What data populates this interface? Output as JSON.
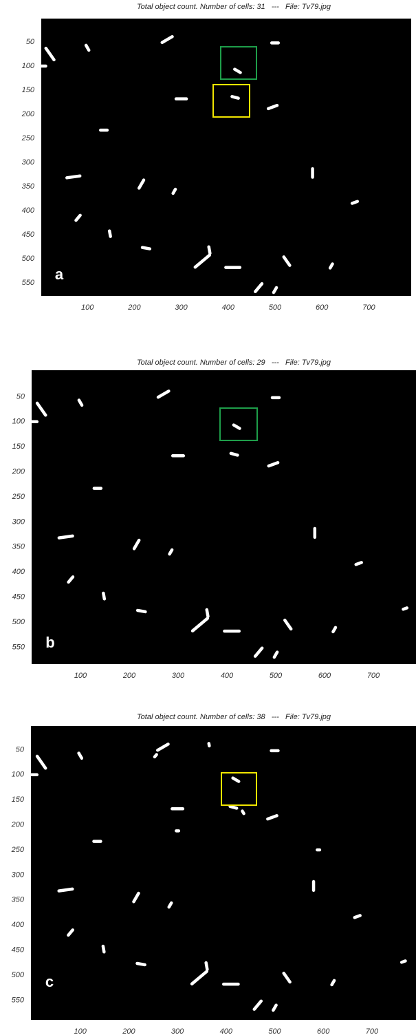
{
  "panels": [
    {
      "title": "Total object count. Number of cells: 31   ---   File: Tv79.jpg",
      "label": "a",
      "xticks": [
        100,
        200,
        300,
        400,
        500,
        600,
        700
      ],
      "yticks": [
        50,
        100,
        150,
        200,
        250,
        300,
        350,
        400,
        450,
        500,
        550
      ]
    },
    {
      "title": "Total object count. Number of cells: 29   ---   File: Tv79.jpg",
      "label": "b",
      "xticks": [
        100,
        200,
        300,
        400,
        500,
        600,
        700
      ],
      "yticks": [
        50,
        100,
        150,
        200,
        250,
        300,
        350,
        400,
        450,
        500,
        550
      ]
    },
    {
      "title": "Total object count. Number of cells: 38   ---   File: Tv79.jpg",
      "label": "c",
      "xticks": [
        100,
        200,
        300,
        400,
        500,
        600,
        700
      ],
      "yticks": [
        50,
        100,
        150,
        200,
        250,
        300,
        350,
        400,
        450,
        500,
        550
      ]
    }
  ]
}
